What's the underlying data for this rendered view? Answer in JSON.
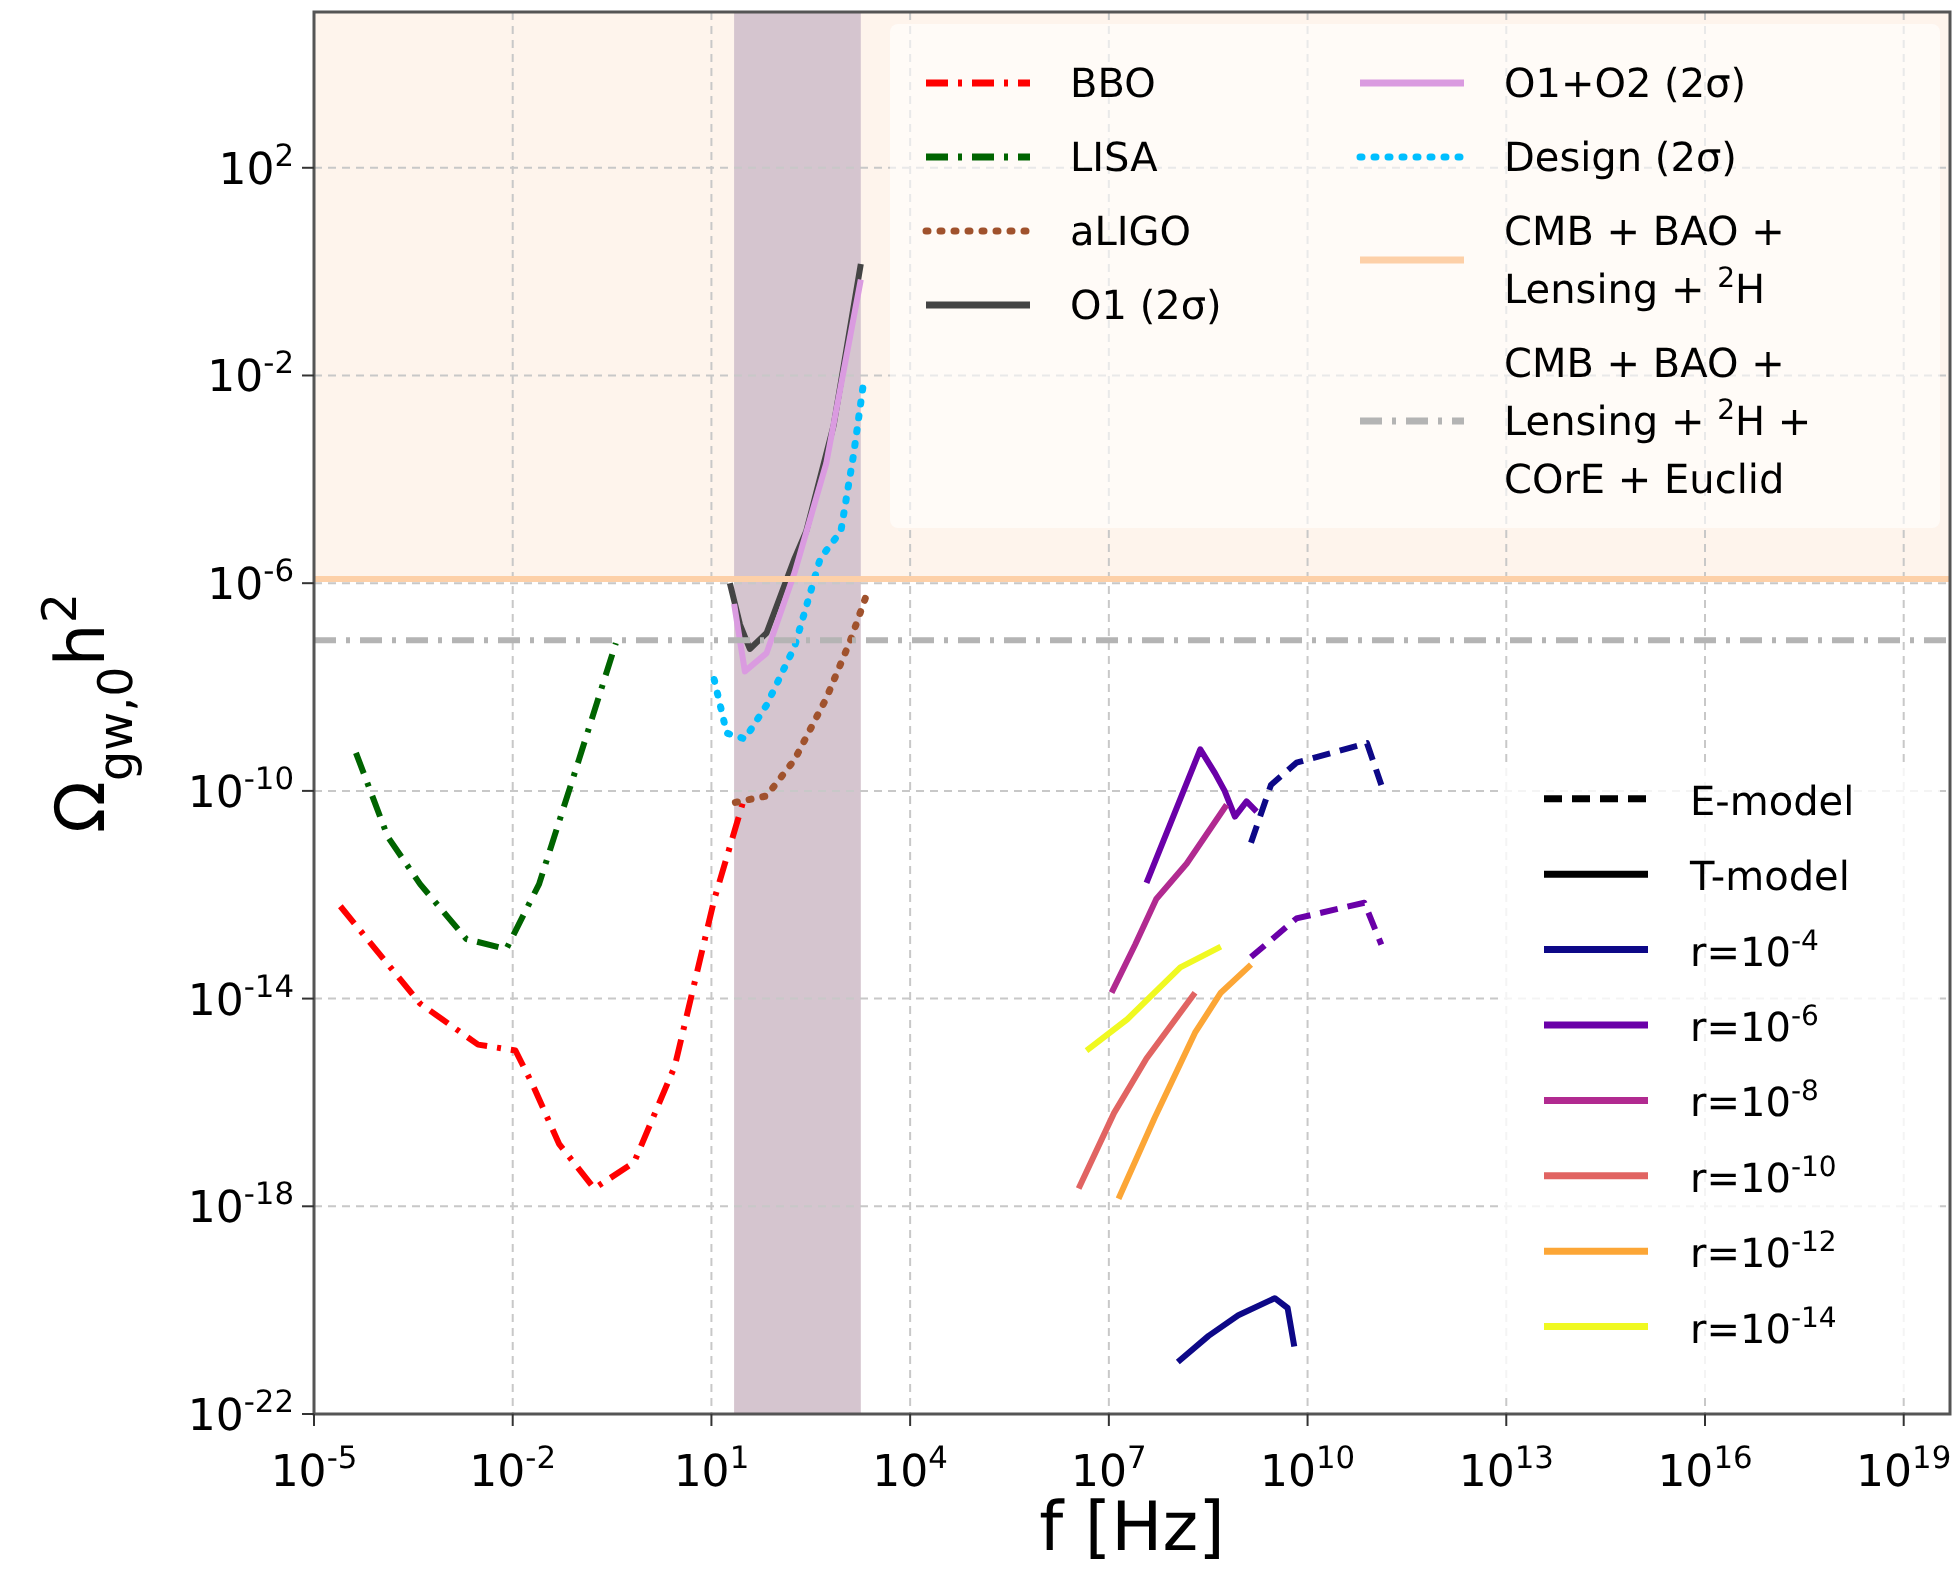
{
  "chart_data": {
    "type": "line",
    "xlabel": "f [Hz]",
    "ylabel": "Ω$_{gw,0}$h$^{2}$",
    "log": "xy",
    "grid": true,
    "legend": "top right",
    "xlim": [
      1e-05,
      5e+19
    ],
    "ylim": [
      1e-22,
      100000.0
    ],
    "xticks": [
      {
        "value": 1e-05,
        "label": "10$^{-5}$"
      },
      {
        "value": 0.01,
        "label": "10$^{-2}$"
      },
      {
        "value": 10.0,
        "label": "10$^{1}$"
      },
      {
        "value": 10000.0,
        "label": "10$^{4}$"
      },
      {
        "value": 10000000.0,
        "label": "10$^{7}$"
      },
      {
        "value": 10000000000.0,
        "label": "10$^{10}$"
      },
      {
        "value": 10000000000000.0,
        "label": "10$^{13}$"
      },
      {
        "value": 1e+16,
        "label": "10$^{16}$"
      },
      {
        "value": 1e+19,
        "label": "10$^{19}$"
      }
    ],
    "yticks": [
      {
        "value": 1e-22,
        "label": "10$^{-22}$"
      },
      {
        "value": 1e-18,
        "label": "10$^{-18}$"
      },
      {
        "value": 1e-14,
        "label": "10$^{-14}$"
      },
      {
        "value": 1e-10,
        "label": "10$^{-10}$"
      },
      {
        "value": 1e-06,
        "label": "10$^{-6}$"
      },
      {
        "value": 0.01,
        "label": "10$^{-2}$"
      },
      {
        "value": 100.0,
        "label": "10$^{2}$"
      }
    ],
    "bands": [
      {
        "axis": "y",
        "from": 1.2e-06,
        "to": 100000.0,
        "color": "#fef4ec"
      },
      {
        "axis": "x",
        "from": 22,
        "to": 1800,
        "color": "#d5c5cf"
      }
    ],
    "series": [
      {
        "name": "BBO",
        "color": "#ff0000",
        "line_style": "dashdot",
        "x": [
          2.5e-05,
          0.0004,
          0.003,
          0.011,
          0.02,
          0.05,
          0.17,
          0.68,
          2.8,
          11,
          32
        ],
        "values": [
          6e-13,
          8e-15,
          1.3e-15,
          1e-15,
          2.2e-16,
          1.6e-17,
          2.2e-18,
          7e-18,
          5e-16,
          8e-13,
          8e-11
        ]
      },
      {
        "name": "LISA",
        "color": "#006400",
        "line_style": "dashdot",
        "x": [
          4.3e-05,
          0.00013,
          0.0004,
          0.002,
          0.008,
          0.025,
          0.1,
          0.36
        ],
        "values": [
          5.4e-10,
          1.3e-11,
          1.6e-12,
          1.4e-13,
          9e-14,
          1.6e-12,
          4e-10,
          7e-08
        ]
      },
      {
        "name": "aLIGO",
        "color": "#a0522d",
        "line_style": "dotted",
        "x": [
          23,
          68,
          180,
          540,
          1260,
          2200
        ],
        "values": [
          6e-11,
          8e-11,
          4e-10,
          6e-09,
          8e-08,
          6e-07
        ]
      },
      {
        "name": "O1 (2σ)",
        "color": "#444444",
        "line_style": "solid",
        "x": [
          19,
          27,
          38,
          68,
          180,
          270,
          700,
          1800
        ],
        "values": [
          1e-06,
          1.6e-07,
          5.4e-08,
          1.1e-07,
          3e-06,
          1e-05,
          0.0011,
          1.4
        ]
      },
      {
        "name": "O1+O2 (2σ)",
        "color": "#da9be0",
        "line_style": "solid",
        "x": [
          22,
          32,
          68,
          180,
          540,
          1800
        ],
        "values": [
          4e-07,
          2e-08,
          4.5e-08,
          1.6e-06,
          0.0002,
          0.7
        ]
      },
      {
        "name": "Design (2σ)",
        "color": "#00bfff",
        "line_style": "dotted",
        "x": [
          11,
          17,
          32,
          68,
          180,
          440,
          900,
          1400,
          2000
        ],
        "values": [
          1.4e-08,
          1.3e-09,
          1e-09,
          4.5e-09,
          6e-08,
          3e-06,
          1e-05,
          0.0003,
          0.008
        ]
      },
      {
        "name": "CMB + BAO + Lensing + $^{2}$H",
        "color": "#fdd0a8",
        "line_style": "solid",
        "x": [
          1e-05,
          5e+19
        ],
        "values": [
          1.2e-06,
          1.2e-06
        ]
      },
      {
        "name": "CMB + BAO + Lensing + $^{2}$H + COrE + Euclid",
        "color": "#b4b4b4",
        "line_style": "dashdot",
        "x": [
          1e-05,
          5e+19
        ],
        "values": [
          8e-08,
          8e-08
        ]
      },
      {
        "name": "E-model",
        "color": "#000000",
        "line_style": "dashed"
      },
      {
        "name": "T-model",
        "color": "#000000",
        "line_style": "solid"
      },
      {
        "name": "r=10$^{-4}$",
        "color": "#0d0887",
        "line_style": "solid",
        "x": [
          110000000.0,
          320000000.0,
          900000000.0,
          3200000000.0,
          5000000000.0,
          6300000000.0
        ],
        "values": [
          1e-21,
          3.2e-21,
          8e-21,
          1.7e-20,
          1.1e-20,
          2e-21
        ]
      },
      {
        "name": "r=10$^{-6}$",
        "color": "#6a00a8",
        "line_style": "solid",
        "x": [
          37000000.0,
          240000000.0,
          400000000.0,
          560000000.0,
          800000000.0,
          1200000000.0,
          1700000000.0
        ],
        "values": [
          1.7e-12,
          6.3e-10,
          2.2e-10,
          1e-10,
          3.2e-11,
          6.3e-11,
          4e-11
        ]
      },
      {
        "name": "r=10$^{-8}$",
        "color": "#b12a90",
        "line_style": "solid",
        "x": [
          11000000.0,
          25000000.0,
          52000000.0,
          150000000.0,
          600000000.0
        ],
        "values": [
          1.3e-14,
          1.1e-13,
          8.3e-13,
          4e-12,
          5.4e-11
        ]
      },
      {
        "name": "r=10$^{-10}$",
        "color": "#e16462",
        "line_style": "solid",
        "x": [
          3500000.0,
          12000000.0,
          37000000.0,
          200000000.0
        ],
        "values": [
          2.2e-18,
          6.3e-17,
          7e-16,
          1.3e-14
        ]
      },
      {
        "name": "r=10$^{-12}$",
        "color": "#fca636",
        "line_style": "solid",
        "x": [
          14000000.0,
          49000000.0,
          200000000.0,
          490000000.0,
          1400000000.0
        ],
        "values": [
          1.4e-18,
          5e-17,
          2.2e-15,
          1.3e-14,
          4.5e-14
        ]
      },
      {
        "name": "r=10$^{-14}$",
        "color": "#f0f921",
        "line_style": "solid",
        "x": [
          4600000.0,
          19000000.0,
          120000000.0,
          490000000.0
        ],
        "values": [
          1e-15,
          4e-15,
          4e-14,
          1e-13
        ]
      },
      {
        "color": "#0d0887",
        "line_style": "dashed",
        "x": [
          1400000000.0,
          2800000000.0,
          6800000000.0,
          79000000000.0,
          130000000000.0
        ],
        "values": [
          1e-11,
          1.3e-10,
          3.5e-10,
          8.3e-10,
          1.3e-10
        ]
      },
      {
        "color": "#6a00a8",
        "line_style": "dashed",
        "x": [
          1400000000.0,
          6800000000.0,
          72000000000.0,
          130000000000.0
        ],
        "values": [
          6.3e-14,
          3.5e-13,
          7e-13,
          1.1e-13
        ]
      }
    ]
  }
}
